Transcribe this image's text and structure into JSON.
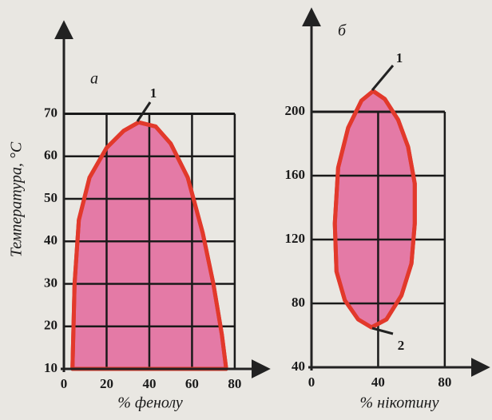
{
  "chart_data": [
    {
      "type": "region",
      "panel": "а",
      "ylabel": "Температура, °С",
      "xlabel": "% фенолу",
      "x": [
        4,
        5,
        7,
        12,
        20,
        28,
        35,
        43,
        50,
        58,
        65,
        70,
        74,
        76
      ],
      "values": [
        10,
        30,
        45,
        55,
        62,
        66,
        68,
        67,
        63,
        55,
        42,
        30,
        18,
        10
      ],
      "color": "#e47aa6",
      "edge_color": "#e2392b",
      "xlim": [
        0,
        95
      ],
      "ylim": [
        10,
        90
      ],
      "xticks": [
        0,
        20,
        40,
        60,
        80
      ],
      "yticks": [
        10,
        20,
        30,
        40,
        50,
        60,
        70
      ],
      "grid": true,
      "annotations": [
        "1"
      ]
    },
    {
      "type": "region",
      "panel": "б",
      "xlabel": "% нікотину",
      "x": [
        37,
        44,
        52,
        58,
        62,
        62,
        60,
        54,
        45,
        36,
        28,
        20,
        15,
        14,
        16,
        22,
        30
      ],
      "values": [
        213,
        208,
        195,
        178,
        155,
        130,
        105,
        85,
        70,
        65,
        70,
        82,
        100,
        130,
        165,
        190,
        207
      ],
      "color": "#e47aa6",
      "edge_color": "#e2392b",
      "xlim": [
        0,
        105
      ],
      "ylim": [
        40,
        260
      ],
      "xticks": [
        0,
        40,
        80
      ],
      "yticks": [
        40,
        80,
        120,
        160,
        200
      ],
      "grid": true,
      "annotations": [
        "1",
        "2"
      ]
    }
  ]
}
